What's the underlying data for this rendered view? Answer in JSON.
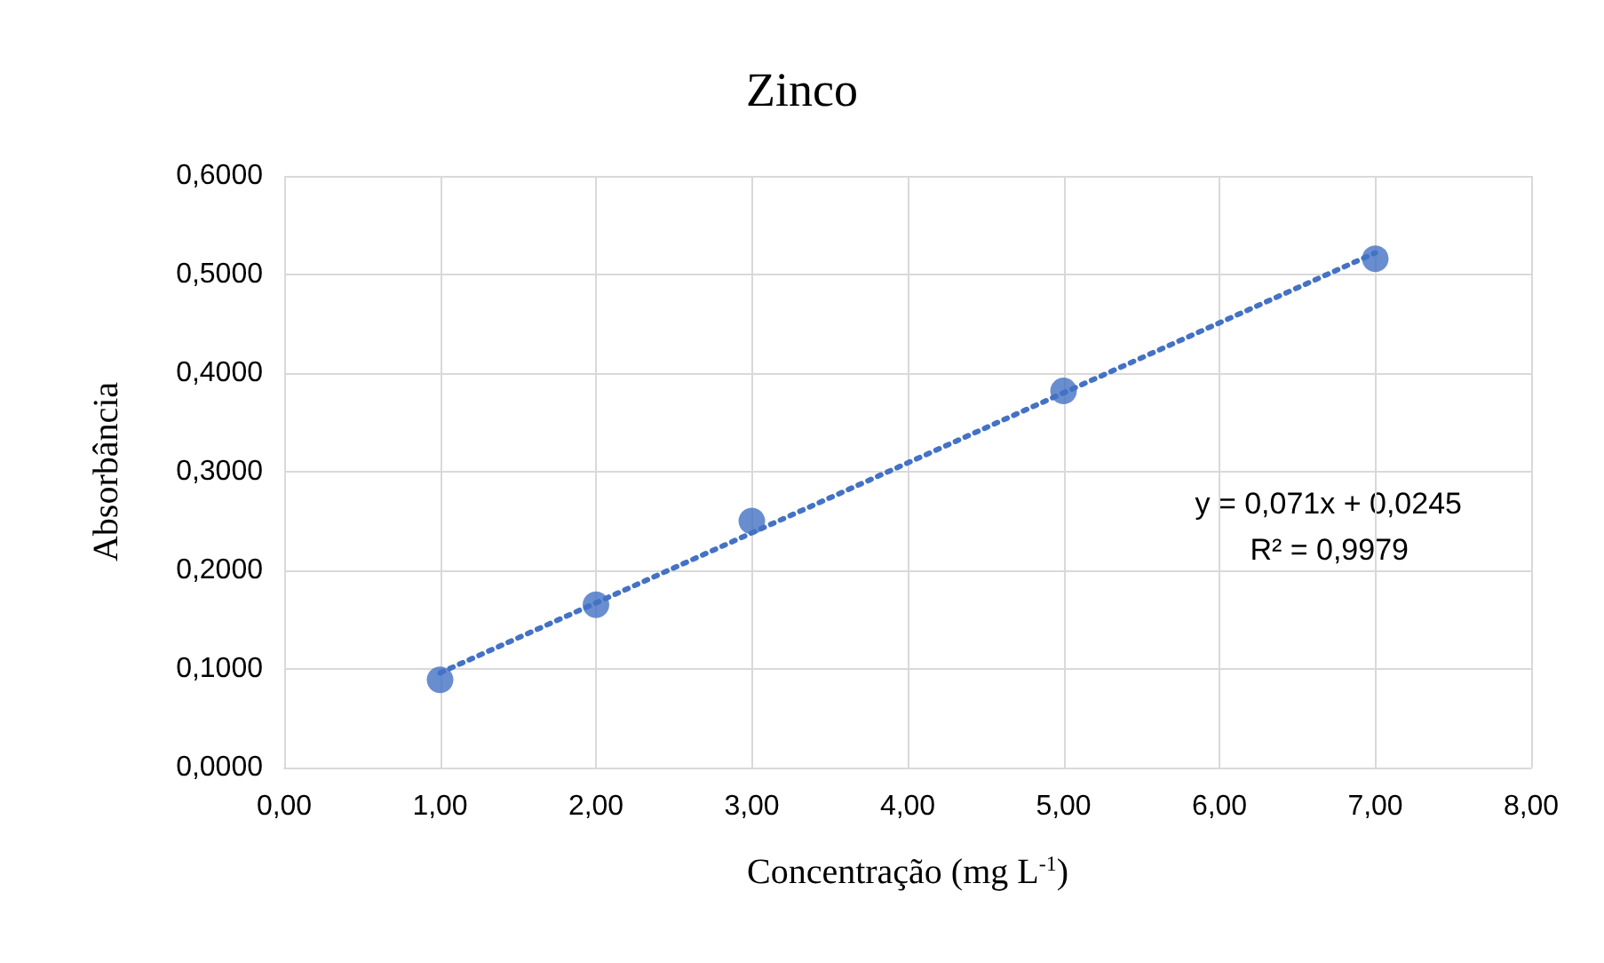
{
  "chart_data": {
    "type": "scatter",
    "title": "Zinco",
    "xlabel": "Concentração (mg L$^{-1}$)",
    "ylabel": "Absorbância",
    "annotations": [
      "y = 0,071x + 0,0245",
      "R² = 0,9979"
    ],
    "series": [
      {
        "color": "#4472c4",
        "marker": "circle",
        "x": [
          1,
          2,
          3,
          5,
          7
        ],
        "values": [
          0.089,
          0.165,
          0.25,
          0.382,
          0.516
        ]
      },
      {
        "type": "line",
        "color": "#4472c4",
        "marker": "none",
        "line_style": "dotted",
        "x": [
          1,
          7
        ],
        "values": [
          0.096,
          0.522
        ]
      }
    ],
    "xlim": [
      0,
      8
    ],
    "xticks": [
      {
        "value": 0,
        "label": "0,00"
      },
      {
        "value": 1,
        "label": "1,00"
      },
      {
        "value": 2,
        "label": "2,00"
      },
      {
        "value": 3,
        "label": "3,00"
      },
      {
        "value": 4,
        "label": "4,00"
      },
      {
        "value": 5,
        "label": "5,00"
      },
      {
        "value": 6,
        "label": "6,00"
      },
      {
        "value": 7,
        "label": "7,00"
      },
      {
        "value": 8,
        "label": "8,00"
      }
    ],
    "ylim": [
      0,
      0.6
    ],
    "yticks": [
      {
        "value": 0,
        "label": "0,0000"
      },
      {
        "value": 0.1,
        "label": "0,1000"
      },
      {
        "value": 0.2,
        "label": "0,2000"
      },
      {
        "value": 0.3,
        "label": "0,3000"
      },
      {
        "value": 0.4,
        "label": "0,4000"
      },
      {
        "value": 0.5,
        "label": "0,5000"
      },
      {
        "value": 0.6,
        "label": "0,6000"
      }
    ],
    "grid": true
  }
}
